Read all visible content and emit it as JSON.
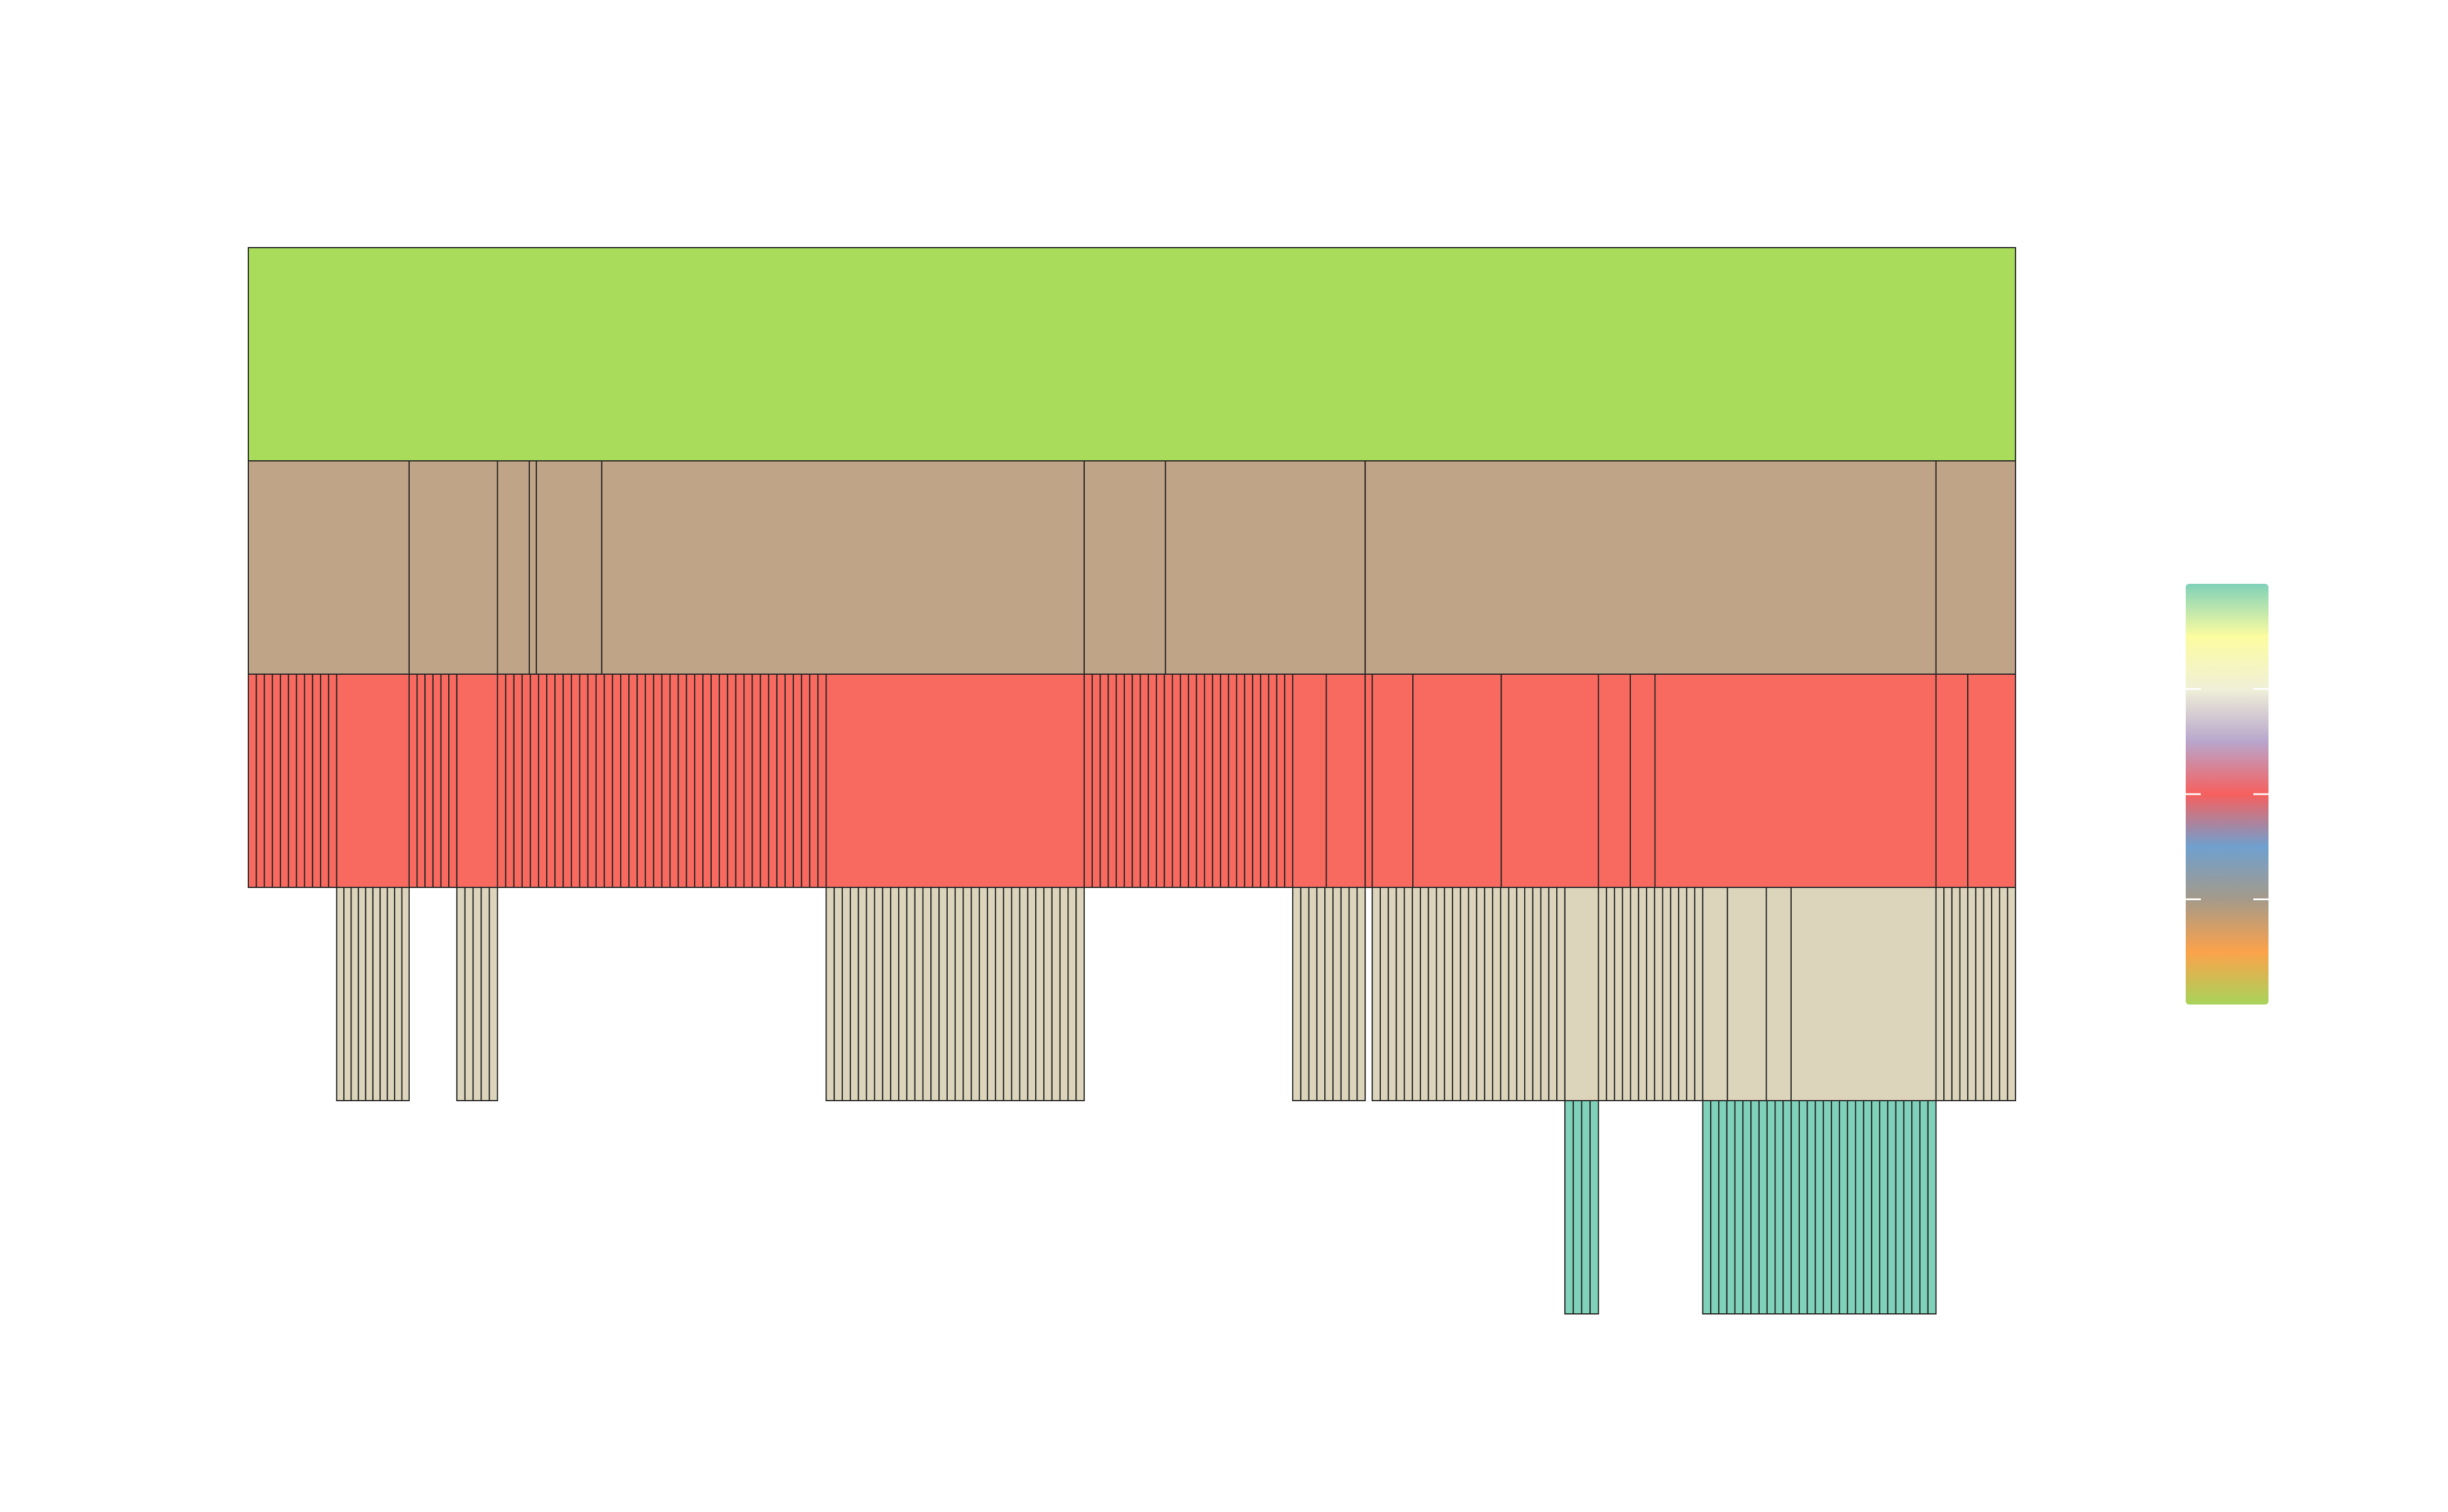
{
  "chart_data": {
    "type": "icicle",
    "title": "",
    "orientation": "top-down",
    "depth": 5,
    "total": 1000,
    "levels": [
      {
        "level": 0,
        "color": "#a8dc5a",
        "groups": [
          {
            "start": 0,
            "end": 1000,
            "divisions": 1
          }
        ]
      },
      {
        "level": 1,
        "color": "#c0a488",
        "groups": [
          {
            "start": 0,
            "end": 91,
            "divisions": 1
          },
          {
            "start": 91,
            "end": 141,
            "divisions": 1
          },
          {
            "start": 141,
            "end": 159,
            "divisions": 1
          },
          {
            "start": 159,
            "end": 163,
            "divisions": 1
          },
          {
            "start": 163,
            "end": 200,
            "divisions": 1
          },
          {
            "start": 200,
            "end": 473,
            "divisions": 1
          },
          {
            "start": 473,
            "end": 519,
            "divisions": 1
          },
          {
            "start": 519,
            "end": 632,
            "divisions": 1
          },
          {
            "start": 632,
            "end": 955,
            "divisions": 1
          },
          {
            "start": 955,
            "end": 1000,
            "divisions": 1
          }
        ]
      },
      {
        "level": 2,
        "color": "#f86a60",
        "groups": [
          {
            "start": 0,
            "end": 50,
            "divisions": 11
          },
          {
            "start": 50,
            "end": 91,
            "divisions": 1
          },
          {
            "start": 91,
            "end": 118,
            "divisions": 6
          },
          {
            "start": 118,
            "end": 141,
            "divisions": 1
          },
          {
            "start": 141,
            "end": 327,
            "divisions": 40
          },
          {
            "start": 327,
            "end": 473,
            "divisions": 1
          },
          {
            "start": 473,
            "end": 591,
            "divisions": 26
          },
          {
            "start": 591,
            "end": 610,
            "divisions": 1
          },
          {
            "start": 610,
            "end": 632,
            "divisions": 1
          },
          {
            "start": 632,
            "end": 636,
            "divisions": 1
          },
          {
            "start": 636,
            "end": 659,
            "divisions": 1
          },
          {
            "start": 659,
            "end": 709,
            "divisions": 1
          },
          {
            "start": 709,
            "end": 764,
            "divisions": 1
          },
          {
            "start": 764,
            "end": 782,
            "divisions": 1
          },
          {
            "start": 782,
            "end": 796,
            "divisions": 1
          },
          {
            "start": 796,
            "end": 955,
            "divisions": 1
          },
          {
            "start": 955,
            "end": 973,
            "divisions": 1
          },
          {
            "start": 973,
            "end": 1000,
            "divisions": 1
          }
        ]
      },
      {
        "level": 3,
        "color": "#dcd5bc",
        "groups": [
          {
            "start": 50,
            "end": 91,
            "divisions": 10
          },
          {
            "start": 118,
            "end": 141,
            "divisions": 5
          },
          {
            "start": 327,
            "end": 473,
            "divisions": 32
          },
          {
            "start": 591,
            "end": 632,
            "divisions": 9
          },
          {
            "start": 636,
            "end": 745,
            "divisions": 24
          },
          {
            "start": 745,
            "end": 764,
            "divisions": 1
          },
          {
            "start": 764,
            "end": 823,
            "divisions": 13
          },
          {
            "start": 823,
            "end": 837,
            "divisions": 1
          },
          {
            "start": 837,
            "end": 859,
            "divisions": 1
          },
          {
            "start": 859,
            "end": 873,
            "divisions": 1
          },
          {
            "start": 873,
            "end": 955,
            "divisions": 1
          },
          {
            "start": 955,
            "end": 1000,
            "divisions": 10
          }
        ]
      },
      {
        "level": 4,
        "color": "#7fd1b9",
        "groups": [
          {
            "start": 745,
            "end": 764,
            "divisions": 4
          },
          {
            "start": 823,
            "end": 955,
            "divisions": 29
          }
        ]
      }
    ],
    "colorscale": [
      "#a8d45a",
      "#fba24b",
      "#a59a8a",
      "#6fa0cf",
      "#f6605e",
      "#b8a6cc",
      "#f0f0d8",
      "#fcfca0",
      "#7fd1b9"
    ],
    "legend": "colorbar-right"
  }
}
